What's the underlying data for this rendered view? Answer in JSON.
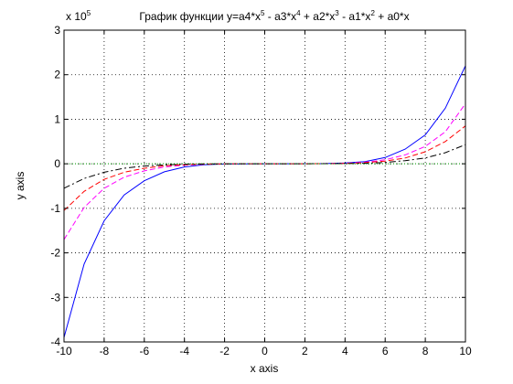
{
  "chart_data": {
    "type": "line",
    "title_parts": [
      {
        "text": "График функции y=a4*x"
      },
      {
        "text": "5",
        "sup": true
      },
      {
        "text": " - a3*x"
      },
      {
        "text": "4",
        "sup": true
      },
      {
        "text": " + a2*x"
      },
      {
        "text": "3",
        "sup": true
      },
      {
        "text": " - a1*x"
      },
      {
        "text": "2",
        "sup": true
      },
      {
        "text": " + a0*x"
      }
    ],
    "xlabel": "x axis",
    "ylabel": "y axis",
    "scale_base": "x 10",
    "scale_exponent": "5",
    "xlim": [
      -10,
      10
    ],
    "ylim": [
      -4,
      3
    ],
    "xticks": [
      -10,
      -8,
      -6,
      -4,
      -2,
      0,
      2,
      4,
      6,
      8,
      10
    ],
    "yticks": [
      -4,
      -3,
      -2,
      -1,
      0,
      1,
      2,
      3
    ],
    "grid": true,
    "x": [
      -10,
      -9,
      -8,
      -7,
      -6,
      -5,
      -4,
      -3,
      -2,
      -1,
      0,
      1,
      2,
      3,
      4,
      5,
      6,
      7,
      8,
      9,
      10
    ],
    "series": [
      {
        "color": "#0000ff",
        "dash": "",
        "values": [
          -3.9,
          -2.25,
          -1.28,
          -0.7,
          -0.38,
          -0.18,
          -0.07,
          -0.02,
          -0.005,
          -0.001,
          0,
          0.0005,
          0.002,
          0.006,
          0.02,
          0.05,
          0.14,
          0.33,
          0.65,
          1.25,
          2.2
        ]
      },
      {
        "color": "#ff00ff",
        "dash": "6 3",
        "values": [
          -1.7,
          -0.98,
          -0.55,
          -0.3,
          -0.16,
          -0.07,
          -0.03,
          -0.01,
          -0.002,
          0,
          0,
          0,
          0.001,
          0.004,
          0.012,
          0.035,
          0.09,
          0.2,
          0.39,
          0.72,
          1.35
        ]
      },
      {
        "color": "#ff0000",
        "dash": "6 3",
        "values": [
          -1.05,
          -0.62,
          -0.35,
          -0.19,
          -0.1,
          -0.045,
          -0.02,
          -0.007,
          -0.002,
          0,
          0,
          0,
          0.001,
          0.003,
          0.008,
          0.025,
          0.06,
          0.13,
          0.27,
          0.5,
          0.85
        ]
      },
      {
        "color": "#000000",
        "dash": "7 3 2 3",
        "values": [
          -0.55,
          -0.33,
          -0.19,
          -0.1,
          -0.05,
          -0.025,
          -0.01,
          -0.004,
          -0.001,
          0,
          0,
          0,
          0,
          0.002,
          0.004,
          0.012,
          0.03,
          0.07,
          0.13,
          0.25,
          0.43
        ]
      },
      {
        "color": "#00a000",
        "dash": "1 2",
        "values": [
          0,
          0,
          0,
          0,
          0,
          0,
          0,
          0,
          0,
          0,
          0,
          0,
          0,
          0,
          0,
          0,
          0,
          0,
          0,
          0,
          0
        ]
      }
    ]
  }
}
